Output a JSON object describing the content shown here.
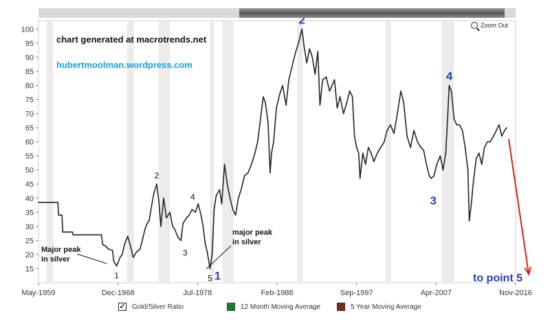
{
  "toolbar": {
    "zoom_out_label": "Zoom Out"
  },
  "legend": {
    "items": [
      {
        "label": "Gold/Silver Ratio",
        "checked": true,
        "color": "#222222"
      },
      {
        "label": "12 Month Moving Average",
        "checked": false,
        "color": "#1f7a34"
      },
      {
        "label": "5 Year Moving Average",
        "checked": false,
        "color": "#7a2a20"
      }
    ]
  },
  "chart_data": {
    "type": "line",
    "title": "",
    "xlabel": "",
    "ylabel": "",
    "ylim": [
      10,
      103
    ],
    "xlim": [
      "1959-05",
      "2016-11"
    ],
    "grid": false,
    "yticks": [
      15,
      20,
      25,
      30,
      35,
      40,
      45,
      50,
      55,
      60,
      65,
      70,
      75,
      80,
      85,
      90,
      95,
      100
    ],
    "xticks": [
      "May-1959",
      "Dec-1968",
      "Jul-1978",
      "Feb-1988",
      "Sep-1997",
      "Apr-2007",
      "Nov-2016"
    ],
    "line_color": "#222222",
    "recession_bands": [
      [
        "1960-05",
        "1961-02"
      ],
      [
        "1970-01",
        "1970-11"
      ],
      [
        "1973-11",
        "1975-03"
      ],
      [
        "1980-01",
        "1980-07"
      ],
      [
        "1981-07",
        "1982-11"
      ],
      [
        "1990-07",
        "1991-03"
      ],
      [
        "2001-03",
        "2001-11"
      ],
      [
        "2007-12",
        "2009-06"
      ]
    ],
    "series": [
      {
        "values": [
          [
            "1959-05",
            38.5
          ],
          [
            "1961-09",
            38.5
          ],
          [
            "1961-10",
            34.0
          ],
          [
            "1962-03",
            34.0
          ],
          [
            "1962-04",
            28.0
          ],
          [
            "1963-06",
            28.0
          ],
          [
            "1963-07",
            27.0
          ],
          [
            "1966-12",
            27.0
          ],
          [
            "1967-02",
            23.5
          ],
          [
            "1967-06",
            23.0
          ],
          [
            "1967-10",
            22.0
          ],
          [
            "1968-04",
            21.5
          ],
          [
            "1968-06",
            17.5
          ],
          [
            "1968-10",
            16.0
          ],
          [
            "1969-03",
            19.0
          ],
          [
            "1969-06",
            20.0
          ],
          [
            "1969-10",
            24.0
          ],
          [
            "1970-02",
            26.5
          ],
          [
            "1970-06",
            23.0
          ],
          [
            "1970-10",
            19.0
          ],
          [
            "1971-03",
            21.0
          ],
          [
            "1971-08",
            22.0
          ],
          [
            "1971-11",
            25.0
          ],
          [
            "1972-03",
            29.0
          ],
          [
            "1972-06",
            31.0
          ],
          [
            "1972-09",
            32.0
          ],
          [
            "1973-01",
            38.0
          ],
          [
            "1973-04",
            42.0
          ],
          [
            "1973-08",
            45.0
          ],
          [
            "1973-11",
            39.0
          ],
          [
            "1974-02",
            30.0
          ],
          [
            "1974-06",
            40.0
          ],
          [
            "1974-10",
            33.0
          ],
          [
            "1975-03",
            35.0
          ],
          [
            "1975-07",
            30.0
          ],
          [
            "1975-10",
            29.0
          ],
          [
            "1976-03",
            26.0
          ],
          [
            "1976-07",
            25.0
          ],
          [
            "1976-10",
            31.0
          ],
          [
            "1977-03",
            33.0
          ],
          [
            "1977-07",
            34.0
          ],
          [
            "1977-11",
            36.0
          ],
          [
            "1978-04",
            35.0
          ],
          [
            "1978-08",
            38.0
          ],
          [
            "1978-12",
            34.0
          ],
          [
            "1979-03",
            30.0
          ],
          [
            "1979-06",
            24.0
          ],
          [
            "1979-09",
            21.0
          ],
          [
            "1980-01",
            15.0
          ],
          [
            "1980-04",
            20.0
          ],
          [
            "1980-07",
            36.0
          ],
          [
            "1980-10",
            41.0
          ],
          [
            "1981-03",
            43.0
          ],
          [
            "1981-06",
            38.0
          ],
          [
            "1981-10",
            52.0
          ],
          [
            "1982-02",
            45.0
          ],
          [
            "1982-06",
            40.0
          ],
          [
            "1982-10",
            36.0
          ],
          [
            "1983-02",
            34.0
          ],
          [
            "1983-06",
            40.0
          ],
          [
            "1983-10",
            43.0
          ],
          [
            "1984-03",
            48.0
          ],
          [
            "1984-08",
            49.0
          ],
          [
            "1985-01",
            52.0
          ],
          [
            "1985-06",
            56.0
          ],
          [
            "1985-10",
            60.0
          ],
          [
            "1986-03",
            70.0
          ],
          [
            "1986-06",
            76.0
          ],
          [
            "1986-09",
            74.0
          ],
          [
            "1987-01",
            67.0
          ],
          [
            "1987-04",
            49.0
          ],
          [
            "1987-06",
            56.0
          ],
          [
            "1987-09",
            60.0
          ],
          [
            "1988-01",
            72.0
          ],
          [
            "1988-06",
            77.0
          ],
          [
            "1988-10",
            80.0
          ],
          [
            "1989-03",
            73.0
          ],
          [
            "1989-07",
            82.0
          ],
          [
            "1990-01",
            88.0
          ],
          [
            "1990-05",
            92.0
          ],
          [
            "1990-09",
            95.0
          ],
          [
            "1991-02",
            100.0
          ],
          [
            "1991-05",
            94.0
          ],
          [
            "1991-09",
            88.0
          ],
          [
            "1992-01",
            93.0
          ],
          [
            "1992-05",
            90.0
          ],
          [
            "1992-09",
            84.0
          ],
          [
            "1993-01",
            92.0
          ],
          [
            "1993-04",
            73.0
          ],
          [
            "1993-08",
            82.0
          ],
          [
            "1994-01",
            83.0
          ],
          [
            "1994-06",
            78.0
          ],
          [
            "1995-01",
            82.0
          ],
          [
            "1995-05",
            72.0
          ],
          [
            "1995-09",
            76.0
          ],
          [
            "1996-02",
            70.0
          ],
          [
            "1996-07",
            74.0
          ],
          [
            "1996-11",
            78.0
          ],
          [
            "1997-03",
            76.0
          ],
          [
            "1997-06",
            62.0
          ],
          [
            "1997-09",
            58.0
          ],
          [
            "1997-12",
            56.0
          ],
          [
            "1998-02",
            47.0
          ],
          [
            "1998-06",
            56.0
          ],
          [
            "1998-10",
            52.0
          ],
          [
            "1999-02",
            58.0
          ],
          [
            "1999-06",
            56.0
          ],
          [
            "1999-10",
            53.0
          ],
          [
            "2000-03",
            56.0
          ],
          [
            "2000-08",
            58.0
          ],
          [
            "2001-01",
            60.0
          ],
          [
            "2001-05",
            64.0
          ],
          [
            "2001-10",
            66.0
          ],
          [
            "2002-03",
            63.0
          ],
          [
            "2002-08",
            70.0
          ],
          [
            "2003-01",
            78.0
          ],
          [
            "2003-05",
            74.0
          ],
          [
            "2003-10",
            62.0
          ],
          [
            "2004-03",
            58.0
          ],
          [
            "2004-08",
            64.0
          ],
          [
            "2005-01",
            60.0
          ],
          [
            "2005-06",
            58.0
          ],
          [
            "2005-10",
            57.0
          ],
          [
            "2006-02",
            52.0
          ],
          [
            "2006-06",
            48.0
          ],
          [
            "2006-09",
            47.0
          ],
          [
            "2007-01",
            48.0
          ],
          [
            "2007-05",
            52.0
          ],
          [
            "2007-10",
            55.0
          ],
          [
            "2008-02",
            50.0
          ],
          [
            "2008-06",
            56.0
          ],
          [
            "2008-09",
            70.0
          ],
          [
            "2008-11",
            80.0
          ],
          [
            "2009-02",
            78.0
          ],
          [
            "2009-06",
            68.0
          ],
          [
            "2009-10",
            66.0
          ],
          [
            "2010-02",
            66.0
          ],
          [
            "2010-06",
            64.0
          ],
          [
            "2010-10",
            58.0
          ],
          [
            "2011-02",
            50.0
          ],
          [
            "2011-04",
            32.0
          ],
          [
            "2011-07",
            38.0
          ],
          [
            "2011-10",
            46.0
          ],
          [
            "2012-02",
            54.0
          ],
          [
            "2012-06",
            56.0
          ],
          [
            "2012-10",
            52.0
          ],
          [
            "2013-02",
            58.0
          ],
          [
            "2013-06",
            60.0
          ],
          [
            "2013-10",
            60.0
          ],
          [
            "2014-03",
            62.0
          ],
          [
            "2014-07",
            64.0
          ],
          [
            "2014-11",
            66.0
          ],
          [
            "2015-03",
            62.0
          ],
          [
            "2015-07",
            64.0
          ],
          [
            "2015-10",
            65.0
          ]
        ]
      }
    ],
    "annotations": {
      "text_blocks": [
        {
          "text": "chart generated at macrotrends.net",
          "color": "#111111"
        },
        {
          "text": "hubertmoolman.wordpress.com",
          "color": "#1a9fd8"
        },
        {
          "text": "Major peak in silver",
          "color": "#111111"
        },
        {
          "text": "major peak in silver",
          "color": "#111111"
        },
        {
          "text": "to point 5",
          "color": "#2b3fae"
        }
      ],
      "small_points": [
        {
          "label": "1",
          "x": "1968-10",
          "y": 16.0
        },
        {
          "label": "2",
          "x": "1973-08",
          "y": 45.0
        },
        {
          "label": "3",
          "x": "1976-07",
          "y": 25.0
        },
        {
          "label": "4",
          "x": "1978-04",
          "y": 37.5
        },
        {
          "label": "5",
          "x": "1980-01",
          "y": 15.0
        }
      ],
      "big_points": [
        {
          "label": "1",
          "x": "1980-06",
          "y": 15.0,
          "color": "#2b3fae"
        },
        {
          "label": "2",
          "x": "1991-02",
          "y": 100.0,
          "color": "#2b3fae"
        },
        {
          "label": "3",
          "x": "2006-09",
          "y": 47.0,
          "color": "#2b3fae"
        },
        {
          "label": "4",
          "x": "2008-11",
          "y": 80.0,
          "color": "#2b3fae"
        }
      ],
      "projection": {
        "from": [
          "2015-10",
          61.0
        ],
        "to": [
          "2018-06",
          13.0
        ],
        "color": "#d42020"
      }
    }
  }
}
